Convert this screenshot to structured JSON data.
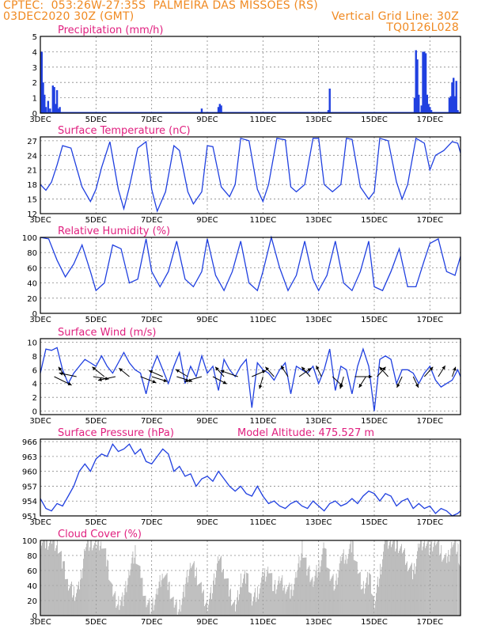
{
  "header": {
    "line1": "CPTEC:  053:26W-27:35S  PALMEIRA DAS MISSOES (RS)",
    "line2_left": "03DEC2020 30Z (GMT)",
    "line2_right": "Vertical Grid Line: 30Z",
    "line3_right": "TQ0126L028"
  },
  "colors": {
    "header": "#f08a22",
    "title": "#e0207f",
    "series": "#2040e0",
    "cloud": "#a8a8a8",
    "wind_arrow": "#000000"
  },
  "x_axis": {
    "labels": [
      "3DEC",
      "5DEC",
      "7DEC",
      "9DEC",
      "11DEC",
      "13DEC",
      "15DEC",
      "17DEC"
    ],
    "range_days": [
      3,
      18.1
    ]
  },
  "chart_data": [
    {
      "id": "precip",
      "type": "bar",
      "title": "Precipitation (mm/h)",
      "ylim": [
        0,
        5
      ],
      "yticks": [
        0,
        1,
        2,
        3,
        4,
        5
      ],
      "x": [
        3.05,
        3.1,
        3.15,
        3.2,
        3.28,
        3.35,
        3.45,
        3.5,
        3.55,
        3.6,
        3.65,
        3.7,
        8.8,
        9.4,
        9.45,
        9.5,
        13.35,
        13.4,
        16.45,
        16.5,
        16.55,
        16.6,
        16.7,
        16.75,
        16.8,
        16.85,
        16.9,
        16.95,
        17.0,
        17.05,
        17.7,
        17.75,
        17.8,
        17.85,
        17.9,
        17.95,
        18.0
      ],
      "values": [
        4.0,
        2.0,
        1.2,
        0.4,
        0.8,
        0.3,
        1.8,
        1.7,
        0.6,
        1.5,
        0.3,
        0.4,
        0.3,
        0.4,
        0.6,
        0.5,
        0.2,
        1.6,
        1.0,
        4.1,
        3.5,
        1.2,
        0.5,
        4.0,
        4.0,
        3.9,
        1.2,
        0.6,
        0.4,
        0.2,
        1.0,
        1.1,
        2.0,
        2.3,
        1.1,
        2.1,
        0.2
      ]
    },
    {
      "id": "temp",
      "type": "line",
      "title": "Surface Temperature (nC)",
      "ylim": [
        12,
        27.8
      ],
      "yticks": [
        12,
        15,
        18,
        21,
        24,
        27
      ],
      "x": [
        3.0,
        3.2,
        3.4,
        3.6,
        3.8,
        4.1,
        4.5,
        4.8,
        5.0,
        5.2,
        5.5,
        5.8,
        6.0,
        6.2,
        6.5,
        6.8,
        7.0,
        7.2,
        7.5,
        7.8,
        8.0,
        8.3,
        8.5,
        8.8,
        9.0,
        9.2,
        9.5,
        9.8,
        10.0,
        10.2,
        10.5,
        10.8,
        11.0,
        11.2,
        11.5,
        11.8,
        12.0,
        12.2,
        12.5,
        12.8,
        13.0,
        13.2,
        13.5,
        13.8,
        14.0,
        14.2,
        14.5,
        14.8,
        15.0,
        15.2,
        15.5,
        15.8,
        16.0,
        16.2,
        16.5,
        16.8,
        17.0,
        17.2,
        17.5,
        17.8,
        18.0,
        18.1
      ],
      "values": [
        18.0,
        16.8,
        18.5,
        22.0,
        26.0,
        25.5,
        17.5,
        14.5,
        17.0,
        21.5,
        26.8,
        17.0,
        13.0,
        17.5,
        25.5,
        26.8,
        17.0,
        12.5,
        16.5,
        26.0,
        25.0,
        16.5,
        14.0,
        16.5,
        26.0,
        25.8,
        17.5,
        15.5,
        18.0,
        27.5,
        27.0,
        17.0,
        14.5,
        18.0,
        27.5,
        27.2,
        17.5,
        16.5,
        18.0,
        27.5,
        27.5,
        18.0,
        16.5,
        18.0,
        27.5,
        27.3,
        17.5,
        15.0,
        16.5,
        27.5,
        27.0,
        18.5,
        15.0,
        18.0,
        27.5,
        26.5,
        21.0,
        24.0,
        25.0,
        26.8,
        26.5,
        24.5
      ]
    },
    {
      "id": "rh",
      "type": "line",
      "title": "Relative Humidity (%)",
      "ylim": [
        0,
        100
      ],
      "yticks": [
        0,
        20,
        40,
        60,
        80,
        100
      ],
      "x": [
        3.0,
        3.3,
        3.6,
        3.9,
        4.2,
        4.5,
        4.8,
        5.0,
        5.3,
        5.6,
        5.9,
        6.2,
        6.5,
        6.8,
        7.0,
        7.3,
        7.6,
        7.9,
        8.2,
        8.5,
        8.8,
        9.0,
        9.3,
        9.6,
        9.9,
        10.2,
        10.5,
        10.8,
        11.0,
        11.3,
        11.6,
        11.9,
        12.2,
        12.5,
        12.8,
        13.0,
        13.3,
        13.6,
        13.9,
        14.2,
        14.5,
        14.8,
        15.0,
        15.3,
        15.6,
        15.9,
        16.2,
        16.5,
        16.8,
        17.0,
        17.3,
        17.6,
        17.9,
        18.1
      ],
      "values": [
        100,
        98,
        70,
        48,
        65,
        90,
        55,
        30,
        40,
        90,
        85,
        40,
        45,
        98,
        55,
        35,
        55,
        95,
        45,
        35,
        55,
        98,
        50,
        30,
        55,
        95,
        40,
        30,
        55,
        100,
        60,
        30,
        50,
        95,
        45,
        30,
        50,
        95,
        40,
        30,
        55,
        95,
        35,
        30,
        55,
        85,
        35,
        35,
        70,
        92,
        98,
        55,
        50,
        75
      ]
    },
    {
      "id": "wind",
      "type": "line",
      "title": "Surface Wind (m/s)",
      "ylim": [
        -0.5,
        10.5
      ],
      "yticks": [
        0,
        2,
        4,
        6,
        8,
        10
      ],
      "x": [
        3.0,
        3.2,
        3.4,
        3.6,
        3.8,
        4.0,
        4.2,
        4.4,
        4.6,
        4.8,
        5.0,
        5.2,
        5.4,
        5.6,
        5.8,
        6.0,
        6.2,
        6.4,
        6.6,
        6.8,
        7.0,
        7.2,
        7.4,
        7.6,
        7.8,
        8.0,
        8.2,
        8.4,
        8.6,
        8.8,
        9.0,
        9.2,
        9.4,
        9.6,
        9.8,
        10.0,
        10.2,
        10.4,
        10.6,
        10.8,
        11.0,
        11.2,
        11.4,
        11.6,
        11.8,
        12.0,
        12.2,
        12.4,
        12.6,
        12.8,
        13.0,
        13.2,
        13.4,
        13.6,
        13.8,
        14.0,
        14.2,
        14.4,
        14.6,
        14.8,
        15.0,
        15.2,
        15.4,
        15.6,
        15.8,
        16.0,
        16.2,
        16.4,
        16.6,
        16.8,
        17.0,
        17.2,
        17.4,
        17.6,
        17.8,
        18.0,
        18.1
      ],
      "values": [
        5.5,
        9.0,
        8.8,
        9.2,
        6.0,
        4.0,
        5.5,
        6.5,
        7.5,
        7.0,
        6.5,
        8.0,
        6.5,
        5.5,
        7.0,
        8.5,
        7.0,
        6.0,
        5.5,
        2.5,
        6.0,
        8.0,
        6.0,
        4.0,
        6.5,
        8.5,
        4.0,
        6.5,
        5.0,
        8.0,
        5.5,
        6.5,
        3.0,
        7.5,
        6.0,
        5.0,
        6.5,
        7.5,
        0.5,
        7.0,
        6.0,
        5.5,
        4.5,
        6.0,
        7.0,
        2.5,
        6.5,
        6.0,
        5.5,
        6.5,
        4.0,
        6.0,
        9.0,
        3.0,
        6.5,
        6.0,
        2.5,
        6.5,
        9.0,
        6.5,
        0.0,
        7.5,
        8.0,
        7.5,
        4.0,
        6.0,
        6.0,
        5.5,
        4.0,
        5.5,
        6.5,
        4.5,
        3.5,
        4.0,
        4.5,
        6.0,
        5.0
      ]
    },
    {
      "id": "pressure",
      "type": "line",
      "title": "Surface Pressure (hPa)",
      "ylim": [
        951,
        966.5
      ],
      "yticks": [
        951,
        954,
        957,
        960,
        963,
        966
      ],
      "x": [
        3.0,
        3.2,
        3.4,
        3.6,
        3.8,
        4.0,
        4.2,
        4.4,
        4.6,
        4.8,
        5.0,
        5.2,
        5.4,
        5.6,
        5.8,
        6.0,
        6.2,
        6.4,
        6.6,
        6.8,
        7.0,
        7.2,
        7.4,
        7.6,
        7.8,
        8.0,
        8.2,
        8.4,
        8.6,
        8.8,
        9.0,
        9.2,
        9.4,
        9.6,
        9.8,
        10.0,
        10.2,
        10.4,
        10.6,
        10.8,
        11.0,
        11.2,
        11.4,
        11.6,
        11.8,
        12.0,
        12.2,
        12.4,
        12.6,
        12.8,
        13.0,
        13.2,
        13.4,
        13.6,
        13.8,
        14.0,
        14.2,
        14.4,
        14.6,
        14.8,
        15.0,
        15.2,
        15.4,
        15.6,
        15.8,
        16.0,
        16.2,
        16.4,
        16.6,
        16.8,
        17.0,
        17.2,
        17.4,
        17.6,
        17.8,
        18.0,
        18.1
      ],
      "values": [
        954.5,
        952.5,
        952.0,
        953.5,
        953.0,
        955.0,
        957.0,
        960.0,
        961.5,
        960.0,
        962.5,
        963.5,
        963.0,
        965.5,
        964.0,
        964.5,
        965.5,
        963.5,
        964.5,
        962.0,
        961.5,
        963.0,
        964.5,
        963.5,
        960.0,
        961.0,
        959.0,
        959.5,
        957.0,
        958.5,
        959.0,
        958.0,
        960.0,
        958.5,
        957.0,
        956.0,
        957.0,
        955.5,
        955.0,
        957.0,
        955.0,
        953.5,
        954.0,
        953.0,
        952.5,
        953.5,
        954.0,
        953.0,
        952.5,
        954.0,
        953.0,
        952.0,
        953.5,
        954.0,
        953.0,
        953.5,
        954.5,
        953.5,
        955.0,
        956.0,
        955.5,
        954.0,
        955.5,
        955.0,
        953.0,
        954.0,
        954.5,
        952.5,
        953.5,
        952.5,
        953.0,
        951.5,
        952.5,
        952.0,
        951.0,
        951.5,
        952.0
      ]
    },
    {
      "id": "cloud",
      "type": "area",
      "title": "Cloud Cover (%)",
      "ylim": [
        0,
        100
      ],
      "yticks": [
        0,
        20,
        40,
        60,
        80,
        100
      ],
      "x": [
        3.0,
        3.2,
        3.4,
        3.6,
        3.8,
        4.0,
        4.2,
        4.4,
        4.6,
        4.8,
        5.0,
        5.2,
        5.4,
        5.6,
        5.8,
        6.0,
        6.2,
        6.4,
        6.6,
        6.8,
        7.0,
        7.2,
        7.4,
        7.6,
        7.8,
        8.0,
        8.2,
        8.4,
        8.6,
        8.8,
        9.0,
        9.2,
        9.4,
        9.6,
        9.8,
        10.0,
        10.2,
        10.4,
        10.6,
        10.8,
        11.0,
        11.2,
        11.4,
        11.6,
        11.8,
        12.0,
        12.2,
        12.4,
        12.6,
        12.8,
        13.0,
        13.2,
        13.4,
        13.6,
        13.8,
        14.0,
        14.2,
        14.4,
        14.6,
        14.8,
        15.0,
        15.2,
        15.4,
        15.6,
        15.8,
        16.0,
        16.2,
        16.4,
        16.6,
        16.8,
        17.0,
        17.2,
        17.4,
        17.6,
        17.8,
        18.0,
        18.1
      ],
      "values": [
        100,
        98,
        100,
        95,
        70,
        40,
        30,
        35,
        95,
        98,
        90,
        100,
        70,
        30,
        15,
        25,
        60,
        85,
        50,
        20,
        10,
        30,
        60,
        40,
        15,
        10,
        40,
        70,
        55,
        30,
        15,
        40,
        75,
        60,
        30,
        10,
        45,
        55,
        20,
        30,
        50,
        65,
        35,
        45,
        40,
        30,
        55,
        90,
        60,
        45,
        65,
        90,
        55,
        40,
        75,
        80,
        95,
        60,
        35,
        55,
        15,
        60,
        100,
        100,
        95,
        85,
        70,
        55,
        95,
        100,
        90,
        100,
        85,
        70,
        100,
        90,
        50
      ]
    }
  ],
  "wind_vectors": [
    {
      "day": 3.5,
      "u": 1.0,
      "v": -0.7
    },
    {
      "day": 3.9,
      "u": -0.4,
      "v": 0.8
    },
    {
      "day": 4.3,
      "u": -1.0,
      "v": 0.3
    },
    {
      "day": 4.9,
      "u": 0.9,
      "v": -0.2
    },
    {
      "day": 5.3,
      "u": -0.7,
      "v": 0.8
    },
    {
      "day": 5.7,
      "u": -1.0,
      "v": -0.3
    },
    {
      "day": 6.2,
      "u": -0.6,
      "v": 0.7
    },
    {
      "day": 6.6,
      "u": 0.9,
      "v": -0.5
    },
    {
      "day": 7.0,
      "u": 0.9,
      "v": -0.4
    },
    {
      "day": 7.4,
      "u": -0.8,
      "v": 0.5
    },
    {
      "day": 7.9,
      "u": 0.9,
      "v": -0.4
    },
    {
      "day": 8.3,
      "u": -0.7,
      "v": 0.6
    },
    {
      "day": 8.8,
      "u": -1.0,
      "v": -0.4
    },
    {
      "day": 9.2,
      "u": 0.8,
      "v": -0.6
    },
    {
      "day": 9.6,
      "u": -0.5,
      "v": 0.8
    },
    {
      "day": 10.1,
      "u": -1.0,
      "v": 0.5
    },
    {
      "day": 10.6,
      "u": 0.8,
      "v": 0.5
    },
    {
      "day": 11.0,
      "u": -0.2,
      "v": -1.0
    },
    {
      "day": 11.4,
      "u": -0.5,
      "v": 0.8
    },
    {
      "day": 11.9,
      "u": -0.4,
      "v": 0.9
    },
    {
      "day": 12.3,
      "u": 0.7,
      "v": 0.7
    },
    {
      "day": 12.7,
      "u": -0.5,
      "v": 0.8
    },
    {
      "day": 13.1,
      "u": -0.3,
      "v": 0.9
    },
    {
      "day": 13.5,
      "u": 0.6,
      "v": -0.8
    },
    {
      "day": 13.9,
      "u": -0.2,
      "v": -1.0
    },
    {
      "day": 14.3,
      "u": 1.0,
      "v": 0.0
    },
    {
      "day": 14.7,
      "u": -0.4,
      "v": -0.9
    },
    {
      "day": 15.1,
      "u": 0.5,
      "v": 0.8
    },
    {
      "day": 15.5,
      "u": -0.5,
      "v": 0.8
    },
    {
      "day": 16.0,
      "u": -0.3,
      "v": -0.9
    },
    {
      "day": 16.4,
      "u": 0.3,
      "v": -0.9
    },
    {
      "day": 16.8,
      "u": 0.5,
      "v": 0.8
    },
    {
      "day": 17.3,
      "u": 0.4,
      "v": 0.9
    },
    {
      "day": 17.8,
      "u": 0.2,
      "v": 0.8
    }
  ],
  "annotations": {
    "model_altitude": "Model Altitude: 475.527 m"
  }
}
